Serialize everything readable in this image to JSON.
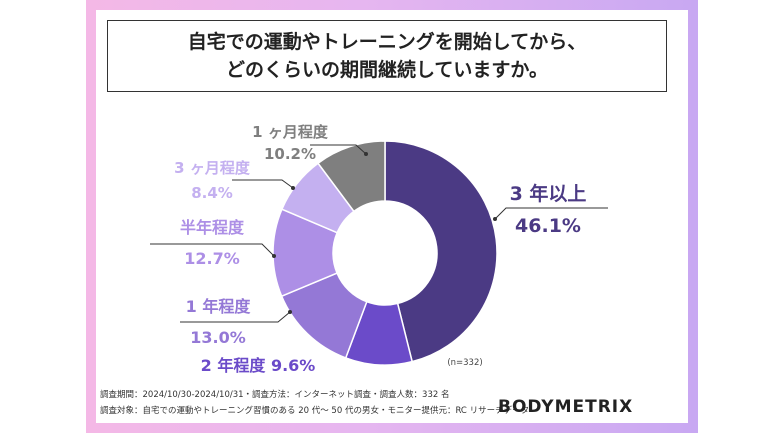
{
  "title": {
    "line1": "自宅での運動やトレーニングを開始してから、",
    "line2": "どのくらいの期間継続していますか。"
  },
  "chart_data": {
    "type": "pie",
    "categories": [
      "3 年以上",
      "2 年程度",
      "1 年程度",
      "半年程度",
      "3 ヶ月程度",
      "1 ヶ月程度"
    ],
    "values": [
      46.1,
      9.6,
      13.0,
      12.7,
      8.4,
      10.2
    ],
    "value_labels": [
      "46.1%",
      "9.6%",
      "13.0%",
      "12.7%",
      "8.4%",
      "10.2%"
    ],
    "colors": [
      "#4b3a84",
      "#6b4bc9",
      "#9478d6",
      "#ad8fe6",
      "#c4b0f0",
      "#7f7f7f"
    ],
    "donut": true,
    "sample_note": "(n=332)"
  },
  "footer": {
    "line1": "調査期間：2024/10/30-2024/10/31・調査方法：インターネット調査・調査人数：332 名",
    "line2": "調査対象：自宅での運動やトレーニング習慣のある 20 代〜 50 代の男女・モニター提供元：RC リサーチデータ"
  },
  "logo": "BODYMETRIX"
}
